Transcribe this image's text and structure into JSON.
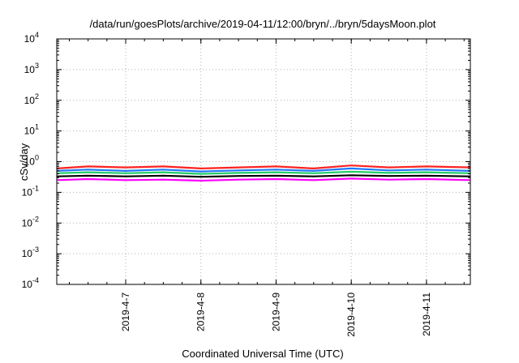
{
  "chart_data": {
    "type": "line",
    "title": "/data/run/goesPlots/archive/2019-04-11/12:00/bryn/../bryn/5daysMoon.plot",
    "xlabel": "Coordinated Universal Time (UTC)",
    "ylabel": "cSv/day",
    "yscale": "log",
    "ylim": [
      0.0001,
      10000
    ],
    "xlim": [
      "2019-04-06 02:00",
      "2019-04-11 14:00"
    ],
    "y_ticks": [
      {
        "base": "10",
        "exp": "-4",
        "value": 0.0001
      },
      {
        "base": "10",
        "exp": "-3",
        "value": 0.001
      },
      {
        "base": "10",
        "exp": "-2",
        "value": 0.01
      },
      {
        "base": "10",
        "exp": "-1",
        "value": 0.1
      },
      {
        "base": "10",
        "exp": "0",
        "value": 1
      },
      {
        "base": "10",
        "exp": "1",
        "value": 10
      },
      {
        "base": "10",
        "exp": "2",
        "value": 100
      },
      {
        "base": "10",
        "exp": "3",
        "value": 1000
      },
      {
        "base": "10",
        "exp": "4",
        "value": 10000
      }
    ],
    "x_ticks": [
      "2019-4-7",
      "2019-4-8",
      "2019-4-9",
      "2019-4-10",
      "2019-4-11"
    ],
    "grid": true,
    "series": [
      {
        "color": "#ff2222",
        "x": [
          "2019-04-06 02:00",
          "2019-04-06 12:00",
          "2019-04-07 00:00",
          "2019-04-07 12:00",
          "2019-04-08 00:00",
          "2019-04-08 12:00",
          "2019-04-09 00:00",
          "2019-04-09 12:00",
          "2019-04-10 00:00",
          "2019-04-10 12:00",
          "2019-04-11 00:00",
          "2019-04-11 14:00"
        ],
        "values": [
          0.6,
          0.7,
          0.65,
          0.7,
          0.6,
          0.65,
          0.7,
          0.6,
          0.75,
          0.65,
          0.7,
          0.65
        ]
      },
      {
        "color": "#2277ff",
        "x": [
          "2019-04-06 02:00",
          "2019-04-06 12:00",
          "2019-04-07 00:00",
          "2019-04-07 12:00",
          "2019-04-08 00:00",
          "2019-04-08 12:00",
          "2019-04-09 00:00",
          "2019-04-09 12:00",
          "2019-04-10 00:00",
          "2019-04-10 12:00",
          "2019-04-11 00:00",
          "2019-04-11 14:00"
        ],
        "values": [
          0.5,
          0.55,
          0.5,
          0.55,
          0.48,
          0.52,
          0.55,
          0.5,
          0.6,
          0.52,
          0.55,
          0.5
        ]
      },
      {
        "color": "#22cc66",
        "x": [
          "2019-04-06 02:00",
          "2019-04-06 12:00",
          "2019-04-07 00:00",
          "2019-04-07 12:00",
          "2019-04-08 00:00",
          "2019-04-08 12:00",
          "2019-04-09 00:00",
          "2019-04-09 12:00",
          "2019-04-10 00:00",
          "2019-04-10 12:00",
          "2019-04-11 00:00",
          "2019-04-11 14:00"
        ],
        "values": [
          0.42,
          0.45,
          0.42,
          0.45,
          0.4,
          0.43,
          0.45,
          0.42,
          0.47,
          0.43,
          0.45,
          0.42
        ]
      },
      {
        "color": "#000000",
        "x": [
          "2019-04-06 02:00",
          "2019-04-06 12:00",
          "2019-04-07 00:00",
          "2019-04-07 12:00",
          "2019-04-08 00:00",
          "2019-04-08 12:00",
          "2019-04-09 00:00",
          "2019-04-09 12:00",
          "2019-04-10 00:00",
          "2019-04-10 12:00",
          "2019-04-11 00:00",
          "2019-04-11 14:00"
        ],
        "values": [
          0.33,
          0.35,
          0.33,
          0.35,
          0.32,
          0.34,
          0.35,
          0.33,
          0.36,
          0.34,
          0.35,
          0.33
        ]
      },
      {
        "color": "#ff00ff",
        "x": [
          "2019-04-06 02:00",
          "2019-04-06 12:00",
          "2019-04-07 00:00",
          "2019-04-07 12:00",
          "2019-04-08 00:00",
          "2019-04-08 12:00",
          "2019-04-09 00:00",
          "2019-04-09 12:00",
          "2019-04-10 00:00",
          "2019-04-10 12:00",
          "2019-04-11 00:00",
          "2019-04-11 14:00"
        ],
        "values": [
          0.25,
          0.27,
          0.25,
          0.26,
          0.24,
          0.26,
          0.27,
          0.25,
          0.28,
          0.26,
          0.27,
          0.25
        ]
      }
    ]
  }
}
